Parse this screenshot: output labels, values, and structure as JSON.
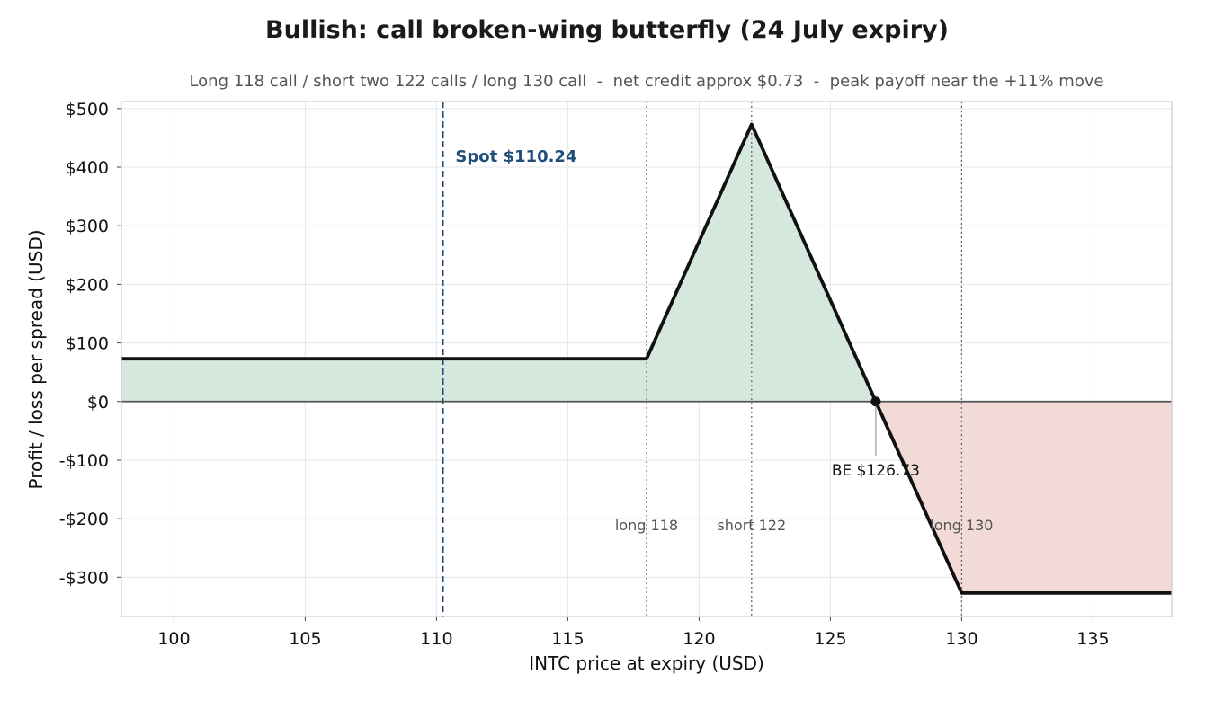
{
  "chart_data": {
    "type": "line",
    "title": "Bullish: call broken-wing butterfly (24 July expiry)",
    "subtitle": "Long 118 call / short two 122 calls / long 130 call  -  net credit approx $0.73  -  peak payoff near the +11% move",
    "xlabel": "INTC price at expiry (USD)",
    "ylabel": "Profit / loss per spread (USD)",
    "xlim": [
      98,
      138
    ],
    "ylim": [
      -367,
      512
    ],
    "xticks": [
      100,
      105,
      110,
      115,
      120,
      125,
      130,
      135
    ],
    "yticks": [
      {
        "value": 500,
        "label": "$500"
      },
      {
        "value": 400,
        "label": "$400"
      },
      {
        "value": 300,
        "label": "$300"
      },
      {
        "value": 200,
        "label": "$200"
      },
      {
        "value": 100,
        "label": "$100"
      },
      {
        "value": 0,
        "label": "$0"
      },
      {
        "value": -100,
        "label": "-$100"
      },
      {
        "value": -200,
        "label": "-$200"
      },
      {
        "value": -300,
        "label": "-$300"
      }
    ],
    "grid": true,
    "series": [
      {
        "x": [
          98,
          118,
          122,
          126.73,
          130,
          138
        ],
        "y": [
          73,
          73,
          473,
          0,
          -327,
          -327
        ],
        "color": "#111111"
      }
    ],
    "fills": {
      "profit_color": "#d5e8de",
      "loss_color": "#f2dad7"
    },
    "spot": {
      "x": 110.24,
      "label": "Spot $110.24",
      "color": "#1f4e79"
    },
    "strikes": [
      {
        "x": 118,
        "label": "long 118"
      },
      {
        "x": 122,
        "label": "short 122"
      },
      {
        "x": 130,
        "label": "long 130"
      }
    ],
    "breakeven": {
      "x": 126.73,
      "y": 0,
      "label": "BE $126.73"
    }
  }
}
